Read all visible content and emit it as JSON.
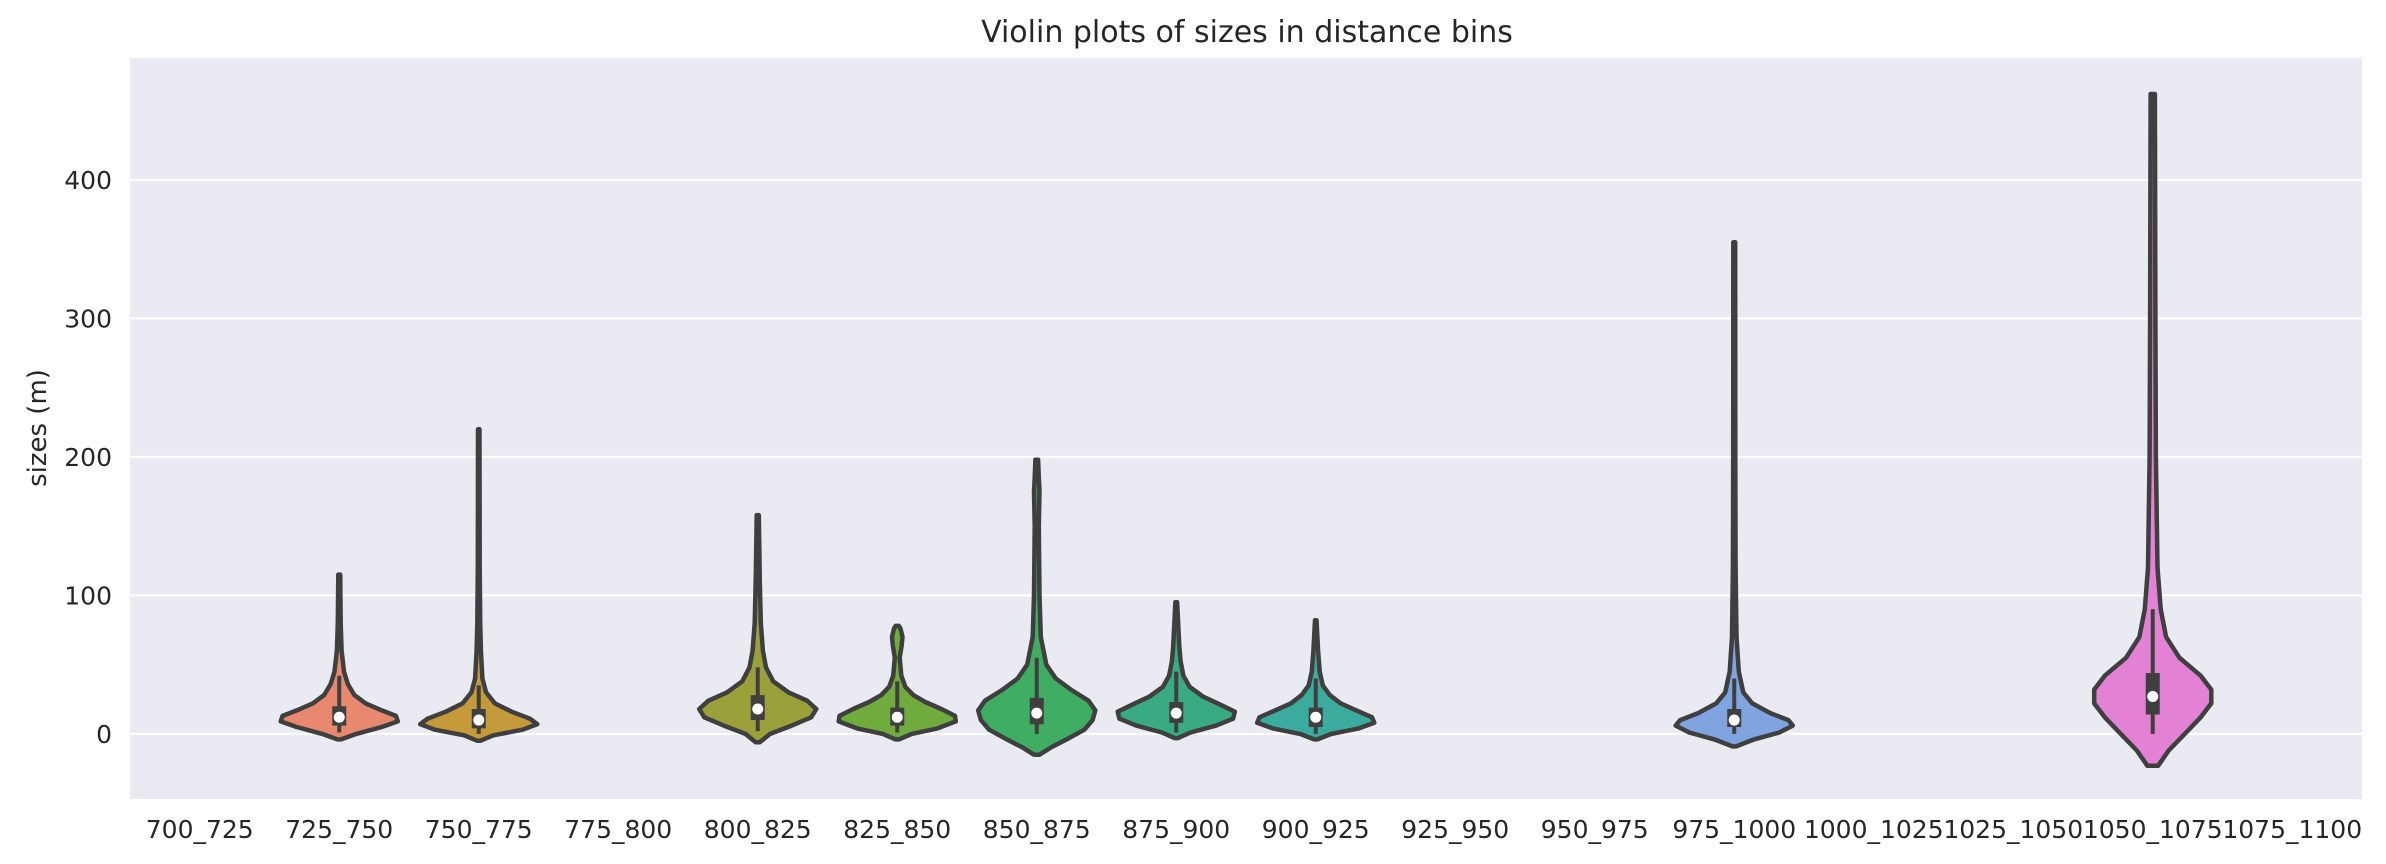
{
  "chart_data": {
    "type": "violin",
    "title": "Violin plots of sizes in distance bins",
    "xlabel": "",
    "ylabel": "sizes (m)",
    "ylim": [
      -47,
      488
    ],
    "yticks": [
      0,
      100,
      200,
      300,
      400
    ],
    "grid": true,
    "background": "#eaeaf2",
    "categories": [
      "700_725",
      "725_750",
      "750_775",
      "775_800",
      "800_825",
      "825_850",
      "850_875",
      "875_900",
      "900_925",
      "925_950",
      "950_975",
      "975_1000",
      "1000_1025",
      "1025_1050",
      "1050_1075",
      "1075_1100"
    ],
    "violins": [
      {
        "category": "725_750",
        "color": "#e8896f",
        "min": -4,
        "max": 115,
        "q1": 6,
        "median": 12,
        "q3": 20,
        "whisker_low": 1,
        "whisker_high": 42,
        "profile": [
          [
            -4,
            0.02
          ],
          [
            0,
            0.18
          ],
          [
            5,
            0.45
          ],
          [
            9,
            0.62
          ],
          [
            13,
            0.6
          ],
          [
            17,
            0.45
          ],
          [
            22,
            0.28
          ],
          [
            28,
            0.16
          ],
          [
            36,
            0.09
          ],
          [
            45,
            0.05
          ],
          [
            60,
            0.025
          ],
          [
            80,
            0.015
          ],
          [
            115,
            0.01
          ]
        ]
      },
      {
        "category": "750_775",
        "color": "#c49a3a",
        "min": -5,
        "max": 220,
        "q1": 4,
        "median": 10,
        "q3": 18,
        "whisker_low": 0,
        "whisker_high": 35,
        "profile": [
          [
            -5,
            0.02
          ],
          [
            -1,
            0.2
          ],
          [
            3,
            0.6
          ],
          [
            7,
            0.8
          ],
          [
            11,
            0.7
          ],
          [
            16,
            0.45
          ],
          [
            22,
            0.22
          ],
          [
            30,
            0.1
          ],
          [
            40,
            0.05
          ],
          [
            60,
            0.03
          ],
          [
            80,
            0.02
          ],
          [
            120,
            0.013
          ],
          [
            220,
            0.01
          ]
        ]
      },
      {
        "category": "800_825",
        "color": "#9aa13a",
        "min": -6,
        "max": 158,
        "q1": 10,
        "median": 18,
        "q3": 28,
        "whisker_low": 2,
        "whisker_high": 48,
        "profile": [
          [
            -6,
            0.02
          ],
          [
            0,
            0.12
          ],
          [
            6,
            0.33
          ],
          [
            12,
            0.52
          ],
          [
            18,
            0.57
          ],
          [
            24,
            0.48
          ],
          [
            30,
            0.3
          ],
          [
            38,
            0.15
          ],
          [
            48,
            0.08
          ],
          [
            60,
            0.05
          ],
          [
            80,
            0.03
          ],
          [
            110,
            0.02
          ],
          [
            158,
            0.01
          ]
        ]
      },
      {
        "category": "825_850",
        "color": "#6fac3d",
        "min": -4,
        "max": 78,
        "q1": 6,
        "median": 12,
        "q3": 19,
        "whisker_low": 1,
        "whisker_high": 38,
        "profile": [
          [
            -4,
            0.02
          ],
          [
            0,
            0.18
          ],
          [
            4,
            0.5
          ],
          [
            9,
            0.73
          ],
          [
            13,
            0.72
          ],
          [
            18,
            0.55
          ],
          [
            23,
            0.35
          ],
          [
            28,
            0.2
          ],
          [
            34,
            0.1
          ],
          [
            42,
            0.05
          ],
          [
            55,
            0.03
          ],
          [
            64,
            0.055
          ],
          [
            70,
            0.065
          ],
          [
            76,
            0.04
          ],
          [
            78,
            0.02
          ]
        ]
      },
      {
        "category": "850_875",
        "color": "#3fae62",
        "min": -15,
        "max": 198,
        "q1": 7,
        "median": 15,
        "q3": 26,
        "whisker_low": 0,
        "whisker_high": 55,
        "profile": [
          [
            -15,
            0.02
          ],
          [
            -10,
            0.1
          ],
          [
            -4,
            0.22
          ],
          [
            3,
            0.35
          ],
          [
            10,
            0.41
          ],
          [
            17,
            0.43
          ],
          [
            24,
            0.38
          ],
          [
            32,
            0.25
          ],
          [
            40,
            0.14
          ],
          [
            50,
            0.07
          ],
          [
            70,
            0.03
          ],
          [
            100,
            0.02
          ],
          [
            150,
            0.015
          ],
          [
            175,
            0.02
          ],
          [
            185,
            0.015
          ],
          [
            198,
            0.01
          ]
        ]
      },
      {
        "category": "875_900",
        "color": "#3aaa82",
        "min": -3,
        "max": 95,
        "q1": 8,
        "median": 15,
        "q3": 23,
        "whisker_low": 1,
        "whisker_high": 45,
        "profile": [
          [
            -3,
            0.02
          ],
          [
            1,
            0.16
          ],
          [
            6,
            0.45
          ],
          [
            11,
            0.64
          ],
          [
            16,
            0.66
          ],
          [
            21,
            0.5
          ],
          [
            27,
            0.3
          ],
          [
            34,
            0.15
          ],
          [
            42,
            0.08
          ],
          [
            52,
            0.05
          ],
          [
            62,
            0.035
          ],
          [
            75,
            0.025
          ],
          [
            95,
            0.01
          ]
        ]
      },
      {
        "category": "900_925",
        "color": "#3bab9e",
        "min": -4,
        "max": 82,
        "q1": 5,
        "median": 12,
        "q3": 19,
        "whisker_low": 0,
        "whisker_high": 40,
        "profile": [
          [
            -4,
            0.02
          ],
          [
            0,
            0.2
          ],
          [
            4,
            0.55
          ],
          [
            8,
            0.75
          ],
          [
            12,
            0.72
          ],
          [
            17,
            0.52
          ],
          [
            22,
            0.32
          ],
          [
            28,
            0.18
          ],
          [
            35,
            0.09
          ],
          [
            45,
            0.05
          ],
          [
            60,
            0.03
          ],
          [
            82,
            0.01
          ]
        ]
      },
      {
        "category": "975_1000",
        "color": "#7fa4e0",
        "min": -9,
        "max": 355,
        "q1": 5,
        "median": 10,
        "q3": 18,
        "whisker_low": 0,
        "whisker_high": 40,
        "profile": [
          [
            -9,
            0.02
          ],
          [
            -4,
            0.22
          ],
          [
            1,
            0.5
          ],
          [
            6,
            0.65
          ],
          [
            10,
            0.6
          ],
          [
            15,
            0.4
          ],
          [
            22,
            0.2
          ],
          [
            30,
            0.1
          ],
          [
            45,
            0.05
          ],
          [
            70,
            0.025
          ],
          [
            120,
            0.015
          ],
          [
            200,
            0.012
          ],
          [
            355,
            0.01
          ]
        ]
      },
      {
        "category": "1050_1075",
        "color": "#e382d4",
        "min": -23,
        "max": 462,
        "q1": 14,
        "median": 27,
        "q3": 44,
        "whisker_low": 0,
        "whisker_high": 90,
        "profile": [
          [
            -23,
            0.02
          ],
          [
            -12,
            0.06
          ],
          [
            0,
            0.12
          ],
          [
            12,
            0.18
          ],
          [
            22,
            0.22
          ],
          [
            32,
            0.22
          ],
          [
            42,
            0.18
          ],
          [
            55,
            0.1
          ],
          [
            70,
            0.05
          ],
          [
            90,
            0.03
          ],
          [
            120,
            0.018
          ],
          [
            200,
            0.012
          ],
          [
            300,
            0.01
          ],
          [
            462,
            0.008
          ]
        ]
      }
    ]
  }
}
